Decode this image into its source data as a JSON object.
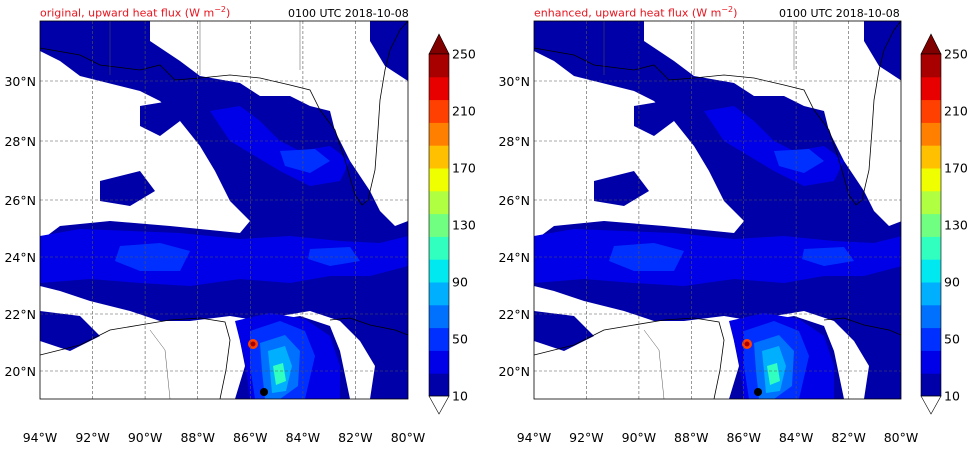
{
  "panels": [
    {
      "title": "original, upward heat flux (W m",
      "title_sup": "−2",
      "title_end": ")",
      "time": "0100 UTC 2018-10-08"
    },
    {
      "title": "enhanced, upward heat flux (W m",
      "title_sup": "−2",
      "title_end": ")",
      "time": "0100 UTC 2018-10-08"
    }
  ],
  "lon_labels": [
    "94°W",
    "92°W",
    "90°W",
    "88°W",
    "86°W",
    "84°W",
    "82°W",
    "80°W"
  ],
  "lat_labels": [
    "20°N",
    "22°N",
    "24°N",
    "26°N",
    "28°N",
    "30°N"
  ],
  "colorbar": {
    "tick_labels": [
      "10",
      "50",
      "90",
      "130",
      "170",
      "210",
      "250"
    ],
    "colors": [
      "#0000a8",
      "#0000e8",
      "#0030ff",
      "#0070ff",
      "#00b0ff",
      "#00e8f0",
      "#30ffc0",
      "#70ff80",
      "#b0ff40",
      "#f0ff00",
      "#ffc000",
      "#ff8000",
      "#ff4000",
      "#e80000",
      "#a80000"
    ],
    "over_color": "#800000"
  },
  "map": {
    "bounds": {
      "lon_min": -94,
      "lon_max": -80,
      "lat_min": 18.2,
      "lat_max": 32.0
    },
    "features": {
      "land": "#ffffff",
      "coastline": "#000000",
      "gridlines": "dashed"
    }
  },
  "chart_data": {
    "type": "heatmap",
    "variable": "upward heat flux",
    "units": "W m-2",
    "valid_time": "0100 UTC 2018-10-08",
    "panels": [
      "original",
      "enhanced"
    ],
    "contour_levels": [
      10,
      30,
      50,
      70,
      90,
      110,
      130,
      150,
      170,
      190,
      210,
      230,
      250
    ],
    "colorbar_ticks": [
      10,
      50,
      90,
      130,
      170,
      210,
      250
    ],
    "lon_range": [
      -94,
      -80
    ],
    "lat_range": [
      18.2,
      32.0
    ],
    "grid": true
  }
}
